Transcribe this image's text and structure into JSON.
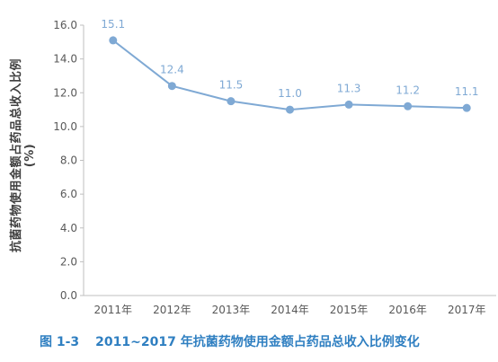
{
  "chart_data": {
    "type": "line",
    "categories": [
      "2011年",
      "2012年",
      "2013年",
      "2014年",
      "2015年",
      "2016年",
      "2017年"
    ],
    "series": [
      {
        "values": [
          15.1,
          12.4,
          11.5,
          11.0,
          11.3,
          11.2,
          11.1
        ]
      }
    ],
    "data_labels": [
      "15.1",
      "12.4",
      "11.5",
      "11.0",
      "11.3",
      "11.2",
      "11.1"
    ],
    "yticks": [
      "0.0",
      "2.0",
      "4.0",
      "6.0",
      "8.0",
      "10.0",
      "12.0",
      "14.0",
      "16.0"
    ],
    "ylim": [
      0,
      16
    ],
    "ylabel": "抗菌药物使用金额占药品总收入比例",
    "ylabel_unit": "(%)",
    "xlabel": "",
    "grid": false,
    "line_color": "#7fa9d4",
    "label_color": "#7fa9d4"
  },
  "caption": {
    "number": "图 1-3",
    "text": "2011~2017 年抗菌药物使用金额占药品总收入比例变化"
  }
}
